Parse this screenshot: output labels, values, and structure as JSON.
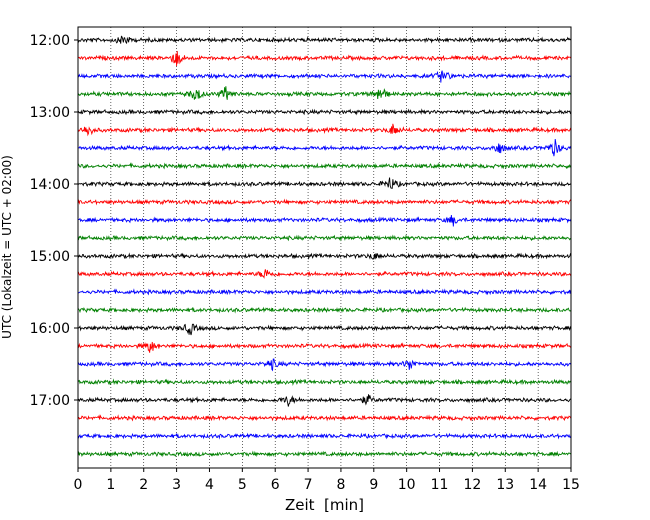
{
  "chart_data": {
    "type": "line",
    "subtype": "helicorder",
    "xlabel": "Zeit  [min]",
    "ylabel": "UTC (Lokalzeit = UTC + 02:00)",
    "xlim": [
      0,
      15
    ],
    "x_ticks": [
      0,
      1,
      2,
      3,
      4,
      5,
      6,
      7,
      8,
      9,
      10,
      11,
      12,
      13,
      14,
      15
    ],
    "x_tick_labels": [
      "0",
      "1",
      "2",
      "3",
      "4",
      "5",
      "6",
      "7",
      "8",
      "9",
      "10",
      "11",
      "12",
      "13",
      "14",
      "15"
    ],
    "x_grid": "dotted vertical lines at each minute",
    "y_tick_labels": [
      "12:00",
      "13:00",
      "14:00",
      "15:00",
      "16:00",
      "17:00"
    ],
    "trace_start_times": [
      "12:00",
      "12:15",
      "12:30",
      "12:45",
      "13:00",
      "13:15",
      "13:30",
      "13:45",
      "14:00",
      "14:15",
      "14:30",
      "14:45",
      "15:00",
      "15:15",
      "15:30",
      "15:45",
      "16:00",
      "16:15",
      "16:30",
      "16:45",
      "17:00",
      "17:15",
      "17:30",
      "17:45"
    ],
    "trace_color_cycle": [
      "#000000",
      "#ff0000",
      "#0000ff",
      "#008000"
    ],
    "events": [
      {
        "trace": 0,
        "minute": 1.4,
        "amp": 0.7
      },
      {
        "trace": 1,
        "minute": 3.0,
        "amp": 1.0
      },
      {
        "trace": 2,
        "minute": 11.1,
        "amp": 0.9
      },
      {
        "trace": 3,
        "minute": 3.6,
        "amp": 0.9
      },
      {
        "trace": 3,
        "minute": 4.5,
        "amp": 0.8
      },
      {
        "trace": 3,
        "minute": 9.2,
        "amp": 1.0
      },
      {
        "trace": 5,
        "minute": 0.3,
        "amp": 0.7
      },
      {
        "trace": 5,
        "minute": 9.6,
        "amp": 0.7
      },
      {
        "trace": 6,
        "minute": 12.8,
        "amp": 0.7
      },
      {
        "trace": 6,
        "minute": 14.5,
        "amp": 1.0
      },
      {
        "trace": 8,
        "minute": 9.5,
        "amp": 0.8
      },
      {
        "trace": 10,
        "minute": 11.4,
        "amp": 0.6
      },
      {
        "trace": 12,
        "minute": 9.0,
        "amp": 0.4
      },
      {
        "trace": 13,
        "minute": 5.7,
        "amp": 0.6
      },
      {
        "trace": 16,
        "minute": 3.4,
        "amp": 0.8
      },
      {
        "trace": 17,
        "minute": 2.2,
        "amp": 0.8
      },
      {
        "trace": 18,
        "minute": 5.9,
        "amp": 0.6
      },
      {
        "trace": 18,
        "minute": 10.1,
        "amp": 0.7
      },
      {
        "trace": 20,
        "minute": 6.4,
        "amp": 0.6
      },
      {
        "trace": 20,
        "minute": 8.8,
        "amp": 0.6
      }
    ]
  }
}
